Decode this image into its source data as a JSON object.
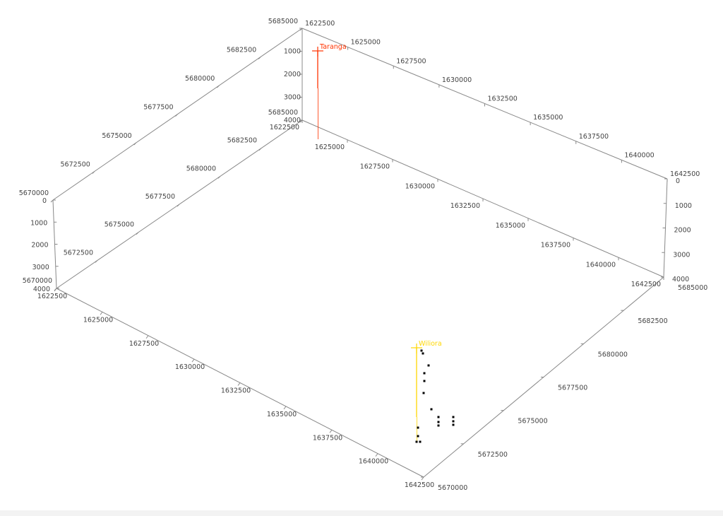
{
  "chart_data": {
    "type": "scatter",
    "projection": "3d",
    "x_axis": {
      "range": [
        1622500,
        1642500
      ],
      "ticks": [
        "1622500",
        "1625000",
        "1627500",
        "1630000",
        "1632500",
        "1635000",
        "1637500",
        "1640000",
        "1642500"
      ]
    },
    "y_axis": {
      "range": [
        5670000,
        5685000
      ],
      "ticks": [
        "5670000",
        "5672500",
        "5675000",
        "5677500",
        "5680000",
        "5682500",
        "5685000"
      ]
    },
    "z_axis": {
      "range": [
        0,
        4000
      ],
      "ticks": [
        "0",
        "1000",
        "2000",
        "3000",
        "4000"
      ]
    },
    "grid": false,
    "wells": [
      {
        "name": "Taranga",
        "color": "#ff3300"
      },
      {
        "name": "Wiliora",
        "color": "#ffd700"
      }
    ],
    "point_color": "#000000",
    "axis_color": "#888888"
  }
}
